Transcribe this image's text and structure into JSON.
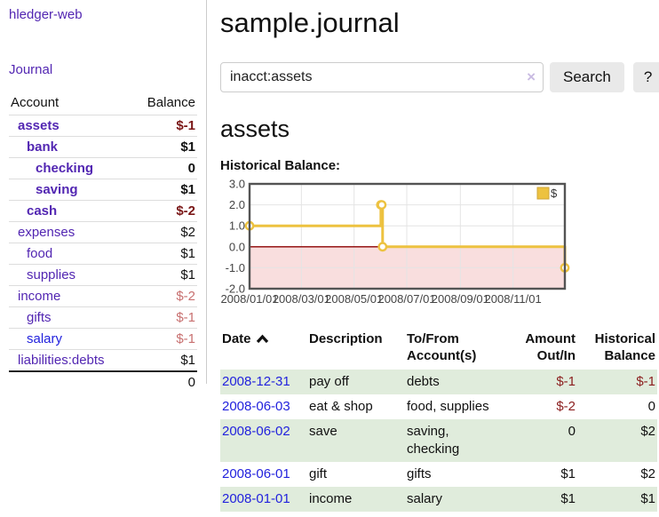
{
  "app": {
    "title": "hledger-web"
  },
  "sidebar": {
    "journal_label": "Journal",
    "accounts": {
      "header_account": "Account",
      "header_balance": "Balance",
      "rows": [
        {
          "name": "assets",
          "balance": "$-1",
          "level": 1,
          "bold": true,
          "balance_style": "neg-dark"
        },
        {
          "name": "bank",
          "balance": "$1",
          "level": 2,
          "bold": true,
          "balance_style": "normal"
        },
        {
          "name": "checking",
          "balance": "0",
          "level": 3,
          "bold": true,
          "balance_style": "normal"
        },
        {
          "name": "saving",
          "balance": "$1",
          "level": 3,
          "bold": true,
          "balance_style": "normal"
        },
        {
          "name": "cash",
          "balance": "$-2",
          "level": 2,
          "bold": true,
          "balance_style": "neg-dark"
        },
        {
          "name": "expenses",
          "balance": "$2",
          "level": 1,
          "bold": false,
          "balance_style": "normal"
        },
        {
          "name": "food",
          "balance": "$1",
          "level": 2,
          "bold": false,
          "balance_style": "normal"
        },
        {
          "name": "supplies",
          "balance": "$1",
          "level": 2,
          "bold": false,
          "balance_style": "normal"
        },
        {
          "name": "income",
          "balance": "$-2",
          "level": 1,
          "bold": false,
          "balance_style": "neg-light"
        },
        {
          "name": "gifts",
          "balance": "$-1",
          "level": 2,
          "bold": false,
          "balance_style": "neg-light"
        },
        {
          "name": "salary",
          "balance": "$-1",
          "level": 2,
          "bold": false,
          "balance_style": "neg-light",
          "link_style": "blue"
        },
        {
          "name": "liabilities:debts",
          "balance": "$1",
          "level": 1,
          "bold": false,
          "balance_style": "normal"
        }
      ],
      "total": "0"
    }
  },
  "main": {
    "title": "sample.journal",
    "search": {
      "value": "inacct:assets",
      "clear_icon": "×",
      "button_label": "Search",
      "help_label": "?"
    },
    "account_heading": "assets",
    "chart_label": "Historical Balance:"
  },
  "chart_data": {
    "type": "line",
    "step": true,
    "title": "Historical Balance",
    "legend": {
      "label": "$",
      "position": "top-right"
    },
    "x_range": [
      "2008-01-01",
      "2008-12-31"
    ],
    "ylim": [
      -2,
      3
    ],
    "yticks": [
      "3.0",
      "2.0",
      "1.0",
      "0.0",
      "-1.0",
      "-2.0"
    ],
    "xticks": [
      "2008/01/01",
      "2008/03/01",
      "2008/05/01",
      "2008/07/01",
      "2008/09/01",
      "2008/11/01"
    ],
    "series": [
      {
        "name": "$",
        "color": "#edc240",
        "points": [
          {
            "date": "2008-01-01",
            "value": 1
          },
          {
            "date": "2008-06-01",
            "value": 2
          },
          {
            "date": "2008-06-02",
            "value": 2
          },
          {
            "date": "2008-06-03",
            "value": 0
          },
          {
            "date": "2008-12-31",
            "value": -1
          }
        ]
      }
    ],
    "grid": true,
    "negative_region": true
  },
  "register": {
    "headers": [
      {
        "label": "Date",
        "sorted": "asc",
        "align": "left"
      },
      {
        "label": "Description",
        "align": "left"
      },
      {
        "label": "To/From Account(s)",
        "align": "left"
      },
      {
        "label": "Amount Out/In",
        "align": "right"
      },
      {
        "label": "Historical Balance",
        "align": "right"
      }
    ],
    "rows": [
      {
        "date": "2008-12-31",
        "description": "pay off",
        "accounts": "debts",
        "amount": "$-1",
        "amount_style": "neg",
        "balance": "$-1",
        "balance_style": "neg"
      },
      {
        "date": "2008-06-03",
        "description": "eat & shop",
        "accounts": "food, supplies",
        "amount": "$-2",
        "amount_style": "neg",
        "balance": "0",
        "balance_style": "normal"
      },
      {
        "date": "2008-06-02",
        "description": "save",
        "accounts": "saving, checking",
        "amount": "0",
        "amount_style": "normal",
        "balance": "$2",
        "balance_style": "normal"
      },
      {
        "date": "2008-06-01",
        "description": "gift",
        "accounts": "gifts",
        "amount": "$1",
        "amount_style": "normal",
        "balance": "$2",
        "balance_style": "normal"
      },
      {
        "date": "2008-01-01",
        "description": "income",
        "accounts": "salary",
        "amount": "$1",
        "amount_style": "normal",
        "balance": "$1",
        "balance_style": "normal"
      }
    ]
  },
  "colors": {
    "link_purple": "#5226b2",
    "link_blue": "#2222dd",
    "negative_dark": "#7a1616",
    "negative_light": "#c87070",
    "table_negative": "#8b1e1e",
    "row_stripe_green": "#e0ecdc",
    "series_gold": "#edc240",
    "chart_negative_fill": "#f9dede",
    "chart_zero_line": "#8b0000",
    "chart_border": "#545454",
    "chart_grid": "#e4e4e4"
  }
}
